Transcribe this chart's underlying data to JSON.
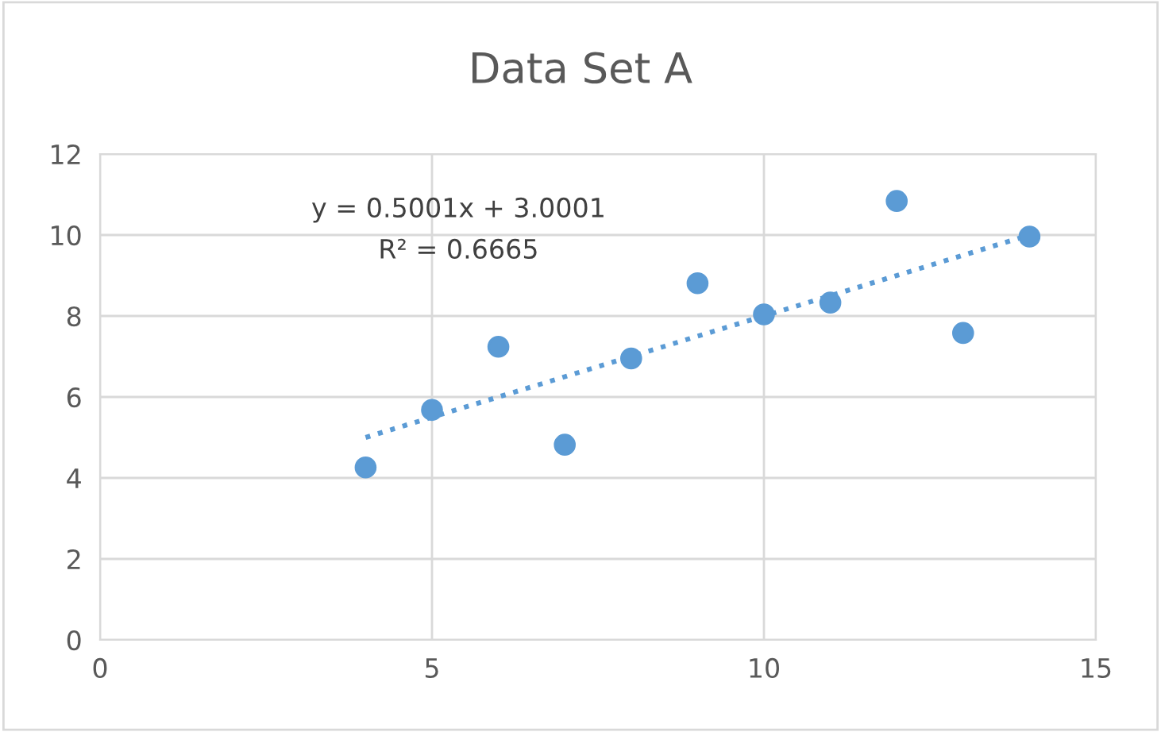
{
  "chart_data": {
    "type": "scatter",
    "title": "Data Set A",
    "series": [
      {
        "color": "#5b9bd5",
        "x": [
          10,
          8,
          13,
          9,
          11,
          14,
          6,
          4,
          12,
          7,
          5
        ],
        "values": [
          8.04,
          6.95,
          7.58,
          8.81,
          8.33,
          9.96,
          7.24,
          4.26,
          10.84,
          4.82,
          5.68
        ],
        "marker": "circle"
      },
      {
        "type": "line",
        "color": "#5b9bd5",
        "x": [
          4,
          14
        ],
        "values": [
          5.0,
          10.0
        ],
        "line_style": "dotted",
        "marker": "none"
      }
    ],
    "annotations": [
      "y = 0.5001x + 3.0001",
      "R² = 0.6665"
    ],
    "xlim": [
      0,
      15
    ],
    "xticks": [
      0,
      5,
      10,
      15
    ],
    "ylim": [
      0,
      12
    ],
    "yticks": [
      0,
      2,
      4,
      6,
      8,
      10,
      12
    ],
    "grid": true
  }
}
